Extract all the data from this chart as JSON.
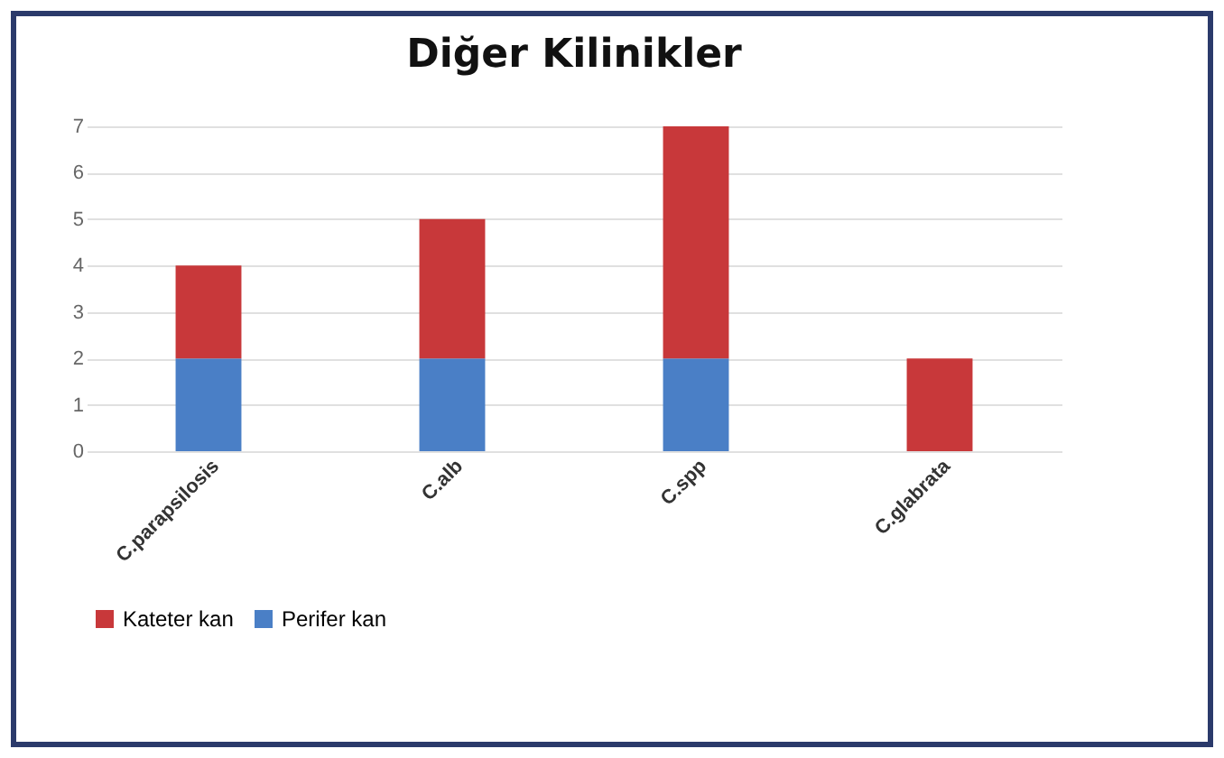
{
  "chart_data": {
    "type": "bar",
    "title": "Diğer Kilinikler",
    "categories": [
      "C.parapsilosis",
      "C.alb",
      "C.spp",
      "C.glabrata"
    ],
    "stacked": true,
    "series": [
      {
        "name": "Perifer kan",
        "color": "#4a7fc6",
        "values": [
          2,
          2,
          2,
          0
        ]
      },
      {
        "name": "Kateter kan",
        "color": "#c8383a",
        "values": [
          2,
          3,
          5,
          2
        ]
      }
    ],
    "ylim": [
      0,
      7
    ],
    "yticks": [
      0,
      1,
      2,
      3,
      4,
      5,
      6,
      7
    ],
    "grid": "y",
    "legend": "bottom"
  }
}
